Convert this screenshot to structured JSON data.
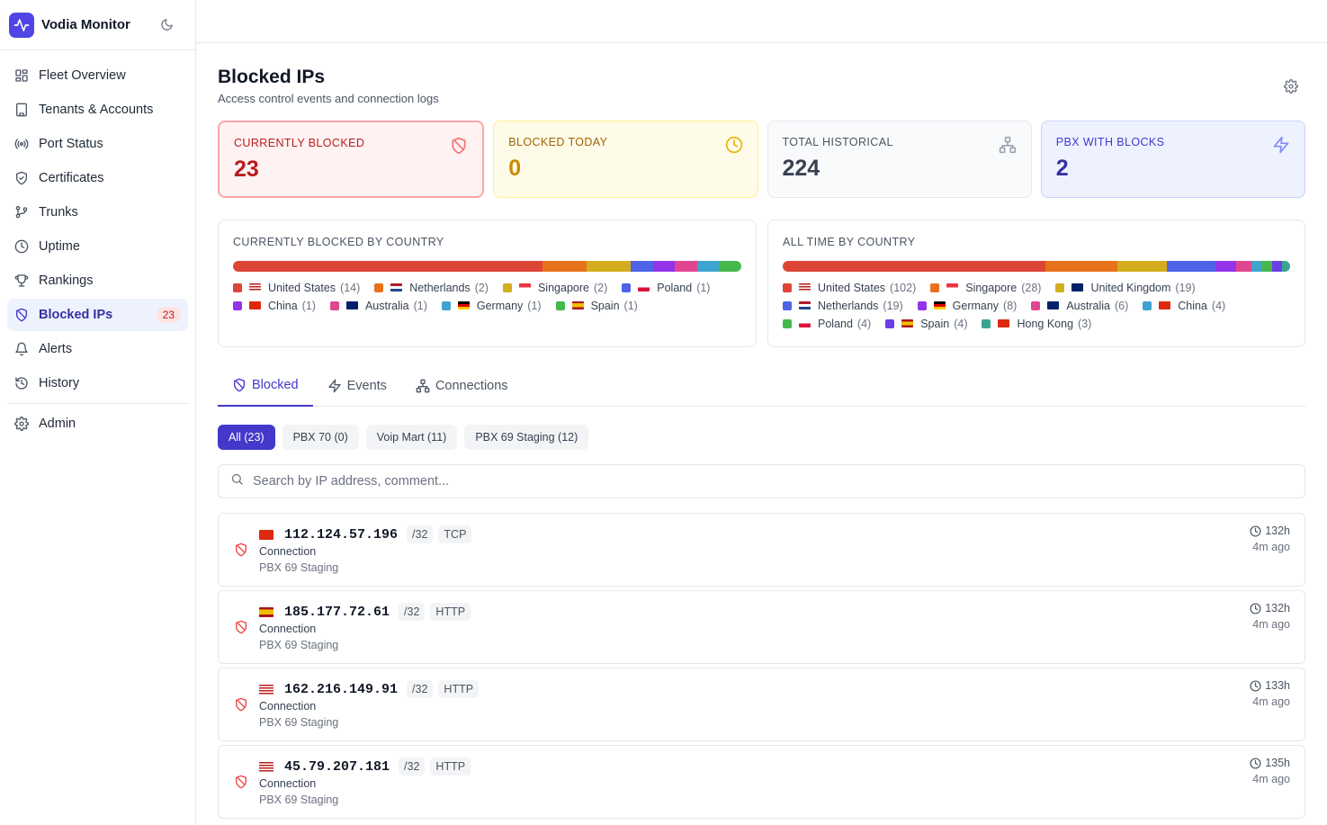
{
  "app": {
    "name": "Vodia Monitor"
  },
  "sidebar": {
    "items": [
      {
        "label": "Fleet Overview",
        "icon": "grid-icon"
      },
      {
        "label": "Tenants & Accounts",
        "icon": "building-icon"
      },
      {
        "label": "Port Status",
        "icon": "radio-icon"
      },
      {
        "label": "Certificates",
        "icon": "shield-check-icon"
      },
      {
        "label": "Trunks",
        "icon": "branch-icon"
      },
      {
        "label": "Uptime",
        "icon": "clock-icon"
      },
      {
        "label": "Rankings",
        "icon": "trophy-icon"
      },
      {
        "label": "Blocked IPs",
        "icon": "shield-off-icon",
        "badge": "23",
        "active": true
      },
      {
        "label": "Alerts",
        "icon": "bell-icon"
      },
      {
        "label": "History",
        "icon": "history-icon"
      }
    ],
    "admin": {
      "label": "Admin",
      "icon": "gear-icon"
    }
  },
  "page": {
    "title": "Blocked IPs",
    "subtitle": "Access control events and connection logs"
  },
  "stats": [
    {
      "label": "CURRENTLY BLOCKED",
      "value": "23",
      "icon": "shield-off-icon",
      "accent": "#b91c1c"
    },
    {
      "label": "BLOCKED TODAY",
      "value": "0",
      "icon": "clock-icon",
      "accent": "#ca8a04"
    },
    {
      "label": "TOTAL HISTORICAL",
      "value": "224",
      "icon": "network-icon",
      "accent": "#374151"
    },
    {
      "label": "PBX WITH BLOCKS",
      "value": "2",
      "icon": "zap-icon",
      "accent": "#3730a3"
    }
  ],
  "country_cards": {
    "current": {
      "title": "CURRENTLY BLOCKED BY COUNTRY",
      "entries": [
        {
          "country": "United States",
          "count": 14,
          "count_label": "(14)",
          "color": "#dc4535",
          "flag": "us"
        },
        {
          "country": "Netherlands",
          "count": 2,
          "count_label": "(2)",
          "color": "#e8711c",
          "flag": "nl"
        },
        {
          "country": "Singapore",
          "count": 2,
          "count_label": "(2)",
          "color": "#d4ad1f",
          "flag": "sg"
        },
        {
          "country": "Poland",
          "count": 1,
          "count_label": "(1)",
          "color": "#4f63e6",
          "flag": "pl"
        },
        {
          "country": "China",
          "count": 1,
          "count_label": "(1)",
          "color": "#9333ea",
          "flag": "cn"
        },
        {
          "country": "Australia",
          "count": 1,
          "count_label": "(1)",
          "color": "#e0468f",
          "flag": "au"
        },
        {
          "country": "Germany",
          "count": 1,
          "count_label": "(1)",
          "color": "#3fa3cf",
          "flag": "de"
        },
        {
          "country": "Spain",
          "count": 1,
          "count_label": "(1)",
          "color": "#45b84d",
          "flag": "es"
        }
      ]
    },
    "all_time": {
      "title": "ALL TIME BY COUNTRY",
      "entries": [
        {
          "country": "United States",
          "count": 102,
          "count_label": "(102)",
          "color": "#dc4535",
          "flag": "us"
        },
        {
          "country": "Singapore",
          "count": 28,
          "count_label": "(28)",
          "color": "#e8711c",
          "flag": "sg"
        },
        {
          "country": "United Kingdom",
          "count": 19,
          "count_label": "(19)",
          "color": "#d4ad1f",
          "flag": "gb"
        },
        {
          "country": "Netherlands",
          "count": 19,
          "count_label": "(19)",
          "color": "#4f63e6",
          "flag": "nl"
        },
        {
          "country": "Germany",
          "count": 8,
          "count_label": "(8)",
          "color": "#9333ea",
          "flag": "de"
        },
        {
          "country": "Australia",
          "count": 6,
          "count_label": "(6)",
          "color": "#e0468f",
          "flag": "au"
        },
        {
          "country": "China",
          "count": 4,
          "count_label": "(4)",
          "color": "#3fa3cf",
          "flag": "cn"
        },
        {
          "country": "Poland",
          "count": 4,
          "count_label": "(4)",
          "color": "#45b84d",
          "flag": "pl"
        },
        {
          "country": "Spain",
          "count": 4,
          "count_label": "(4)",
          "color": "#6d3ee6",
          "flag": "es"
        },
        {
          "country": "Hong Kong",
          "count": 3,
          "count_label": "(3)",
          "color": "#3aa58f",
          "flag": "hk"
        }
      ]
    }
  },
  "tabs": [
    {
      "label": "Blocked",
      "icon": "shield-off-icon",
      "active": true
    },
    {
      "label": "Events",
      "icon": "zap-icon"
    },
    {
      "label": "Connections",
      "icon": "network-icon"
    }
  ],
  "filters": [
    {
      "label": "All (23)",
      "active": true
    },
    {
      "label": "PBX 70 (0)"
    },
    {
      "label": "Voip Mart (11)"
    },
    {
      "label": "PBX 69 Staging (12)"
    }
  ],
  "search": {
    "placeholder": "Search by IP address, comment...",
    "value": ""
  },
  "blocked_list": [
    {
      "flag": "cn",
      "ip": "112.124.57.196",
      "mask": "/32",
      "proto": "TCP",
      "type": "Connection",
      "pbx": "PBX 69 Staging",
      "duration": "132h",
      "ago": "4m ago"
    },
    {
      "flag": "es",
      "ip": "185.177.72.61",
      "mask": "/32",
      "proto": "HTTP",
      "type": "Connection",
      "pbx": "PBX 69 Staging",
      "duration": "132h",
      "ago": "4m ago"
    },
    {
      "flag": "us",
      "ip": "162.216.149.91",
      "mask": "/32",
      "proto": "HTTP",
      "type": "Connection",
      "pbx": "PBX 69 Staging",
      "duration": "133h",
      "ago": "4m ago"
    },
    {
      "flag": "us",
      "ip": "45.79.207.181",
      "mask": "/32",
      "proto": "HTTP",
      "type": "Connection",
      "pbx": "PBX 69 Staging",
      "duration": "135h",
      "ago": "4m ago"
    }
  ]
}
